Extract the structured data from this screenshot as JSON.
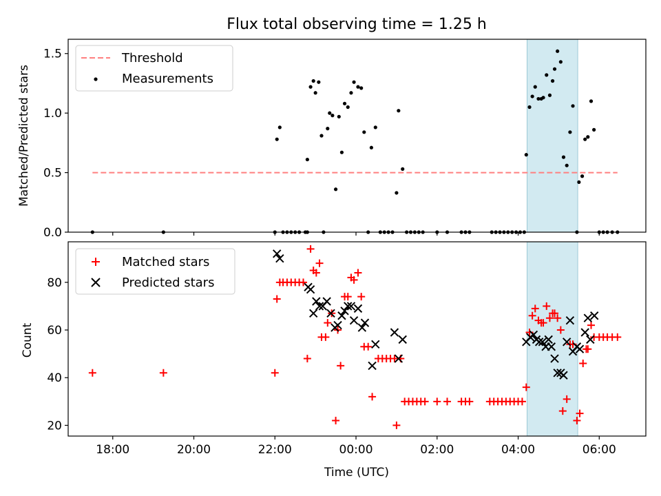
{
  "title": "Flux total observing time = 1.25 h",
  "colors": {
    "threshold": "#ff7f7f",
    "measurements": "#000000",
    "matched": "#ff0000",
    "predicted": "#000000",
    "highlight": "#add8e6"
  },
  "chart_data": [
    {
      "type": "scatter",
      "ylabel": "Matched/Predicted stars",
      "xlim": [
        16.9,
        31.15
      ],
      "ylim": [
        0,
        1.62
      ],
      "yticks": [
        0.0,
        0.5,
        1.0,
        1.5
      ],
      "ytick_labels": [
        "0.0",
        "0.5",
        "1.0",
        "1.5"
      ],
      "highlight_span": [
        28.22,
        29.47
      ],
      "legend": {
        "position": "top-left",
        "entries": [
          "Threshold",
          "Measurements"
        ]
      },
      "threshold": {
        "name": "Threshold",
        "y": 0.5,
        "x_range": [
          17.5,
          30.45
        ],
        "style": "dashed"
      },
      "series": [
        {
          "name": "Measurements",
          "marker": "dot",
          "points": [
            [
              17.5,
              0
            ],
            [
              19.25,
              0
            ],
            [
              22.0,
              0
            ],
            [
              22.05,
              0.78
            ],
            [
              22.12,
              0.88
            ],
            [
              22.2,
              0
            ],
            [
              22.3,
              0
            ],
            [
              22.4,
              0
            ],
            [
              22.5,
              0
            ],
            [
              22.6,
              0
            ],
            [
              22.75,
              0
            ],
            [
              22.8,
              0
            ],
            [
              22.8,
              0.61
            ],
            [
              22.88,
              1.22
            ],
            [
              22.95,
              1.27
            ],
            [
              23.0,
              1.17
            ],
            [
              23.08,
              1.26
            ],
            [
              23.15,
              0.81
            ],
            [
              23.2,
              0
            ],
            [
              23.3,
              0.87
            ],
            [
              23.35,
              1.0
            ],
            [
              23.42,
              0.98
            ],
            [
              23.5,
              0.36
            ],
            [
              23.58,
              0.97
            ],
            [
              23.65,
              0.67
            ],
            [
              23.72,
              1.08
            ],
            [
              23.8,
              1.05
            ],
            [
              23.88,
              1.17
            ],
            [
              23.95,
              1.26
            ],
            [
              24.05,
              1.22
            ],
            [
              24.13,
              1.21
            ],
            [
              24.2,
              0.84
            ],
            [
              24.3,
              0
            ],
            [
              24.38,
              0.71
            ],
            [
              24.48,
              0.88
            ],
            [
              24.6,
              0
            ],
            [
              24.7,
              0
            ],
            [
              24.8,
              0
            ],
            [
              24.9,
              0
            ],
            [
              25.0,
              0.33
            ],
            [
              25.05,
              1.02
            ],
            [
              25.15,
              0.53
            ],
            [
              25.25,
              0
            ],
            [
              25.35,
              0
            ],
            [
              25.45,
              0
            ],
            [
              25.55,
              0
            ],
            [
              25.65,
              0
            ],
            [
              26.0,
              0
            ],
            [
              26.25,
              0
            ],
            [
              26.6,
              0
            ],
            [
              26.7,
              0
            ],
            [
              26.8,
              0
            ],
            [
              27.35,
              0
            ],
            [
              27.45,
              0
            ],
            [
              27.55,
              0
            ],
            [
              27.65,
              0
            ],
            [
              27.75,
              0
            ],
            [
              27.85,
              0
            ],
            [
              27.95,
              0
            ],
            [
              28.05,
              0
            ],
            [
              28.15,
              0
            ],
            [
              28.2,
              0.65
            ],
            [
              28.28,
              1.05
            ],
            [
              28.35,
              1.14
            ],
            [
              28.42,
              1.22
            ],
            [
              28.5,
              1.12
            ],
            [
              28.57,
              1.12
            ],
            [
              28.62,
              1.13
            ],
            [
              28.7,
              1.32
            ],
            [
              28.78,
              1.15
            ],
            [
              28.85,
              1.27
            ],
            [
              28.9,
              1.37
            ],
            [
              28.97,
              1.52
            ],
            [
              29.05,
              1.43
            ],
            [
              29.12,
              0.63
            ],
            [
              29.2,
              0.56
            ],
            [
              29.28,
              0.84
            ],
            [
              29.35,
              1.06
            ],
            [
              29.45,
              0
            ],
            [
              29.5,
              0.42
            ],
            [
              29.58,
              0.47
            ],
            [
              29.65,
              0.78
            ],
            [
              29.72,
              0.8
            ],
            [
              29.8,
              1.1
            ],
            [
              29.87,
              0.86
            ],
            [
              30.0,
              0
            ],
            [
              30.1,
              0
            ],
            [
              30.2,
              0
            ],
            [
              30.32,
              0
            ],
            [
              30.45,
              0
            ]
          ]
        }
      ]
    },
    {
      "type": "scatter",
      "ylabel": "Count",
      "xlabel": "Time (UTC)",
      "xlim": [
        16.9,
        31.15
      ],
      "ylim": [
        15.5,
        97
      ],
      "yticks": [
        20,
        40,
        60,
        80
      ],
      "ytick_labels": [
        "20",
        "40",
        "60",
        "80"
      ],
      "xticks": [
        18,
        20,
        22,
        24,
        26,
        28,
        30
      ],
      "xtick_labels": [
        "18:00",
        "20:00",
        "22:00",
        "00:00",
        "02:00",
        "04:00",
        "06:00"
      ],
      "highlight_span": [
        28.22,
        29.47
      ],
      "legend": {
        "position": "top-left",
        "entries": [
          "Matched stars",
          "Predicted stars"
        ]
      },
      "series": [
        {
          "name": "Matched stars",
          "marker": "plus",
          "points": [
            [
              17.5,
              42
            ],
            [
              19.25,
              42
            ],
            [
              22.0,
              42
            ],
            [
              22.05,
              73
            ],
            [
              22.12,
              80
            ],
            [
              22.2,
              80
            ],
            [
              22.3,
              80
            ],
            [
              22.4,
              80
            ],
            [
              22.5,
              80
            ],
            [
              22.6,
              80
            ],
            [
              22.7,
              80
            ],
            [
              22.8,
              48
            ],
            [
              22.88,
              94
            ],
            [
              22.95,
              85
            ],
            [
              23.02,
              84
            ],
            [
              23.1,
              88
            ],
            [
              23.15,
              57
            ],
            [
              23.25,
              57
            ],
            [
              23.3,
              63
            ],
            [
              23.4,
              67
            ],
            [
              23.5,
              22
            ],
            [
              23.55,
              60
            ],
            [
              23.62,
              45
            ],
            [
              23.72,
              74
            ],
            [
              23.8,
              74
            ],
            [
              23.88,
              82
            ],
            [
              23.95,
              81
            ],
            [
              24.05,
              84
            ],
            [
              24.13,
              74
            ],
            [
              24.2,
              53
            ],
            [
              24.3,
              53
            ],
            [
              24.4,
              32
            ],
            [
              24.55,
              48
            ],
            [
              24.65,
              48
            ],
            [
              24.75,
              48
            ],
            [
              24.85,
              48
            ],
            [
              24.95,
              48
            ],
            [
              25.0,
              20
            ],
            [
              25.1,
              48
            ],
            [
              25.2,
              30
            ],
            [
              25.3,
              30
            ],
            [
              25.4,
              30
            ],
            [
              25.5,
              30
            ],
            [
              25.6,
              30
            ],
            [
              25.7,
              30
            ],
            [
              26.0,
              30
            ],
            [
              26.25,
              30
            ],
            [
              26.6,
              30
            ],
            [
              26.7,
              30
            ],
            [
              26.8,
              30
            ],
            [
              27.3,
              30
            ],
            [
              27.4,
              30
            ],
            [
              27.5,
              30
            ],
            [
              27.6,
              30
            ],
            [
              27.7,
              30
            ],
            [
              27.8,
              30
            ],
            [
              27.9,
              30
            ],
            [
              28.0,
              30
            ],
            [
              28.1,
              30
            ],
            [
              28.2,
              36
            ],
            [
              28.28,
              59
            ],
            [
              28.35,
              66
            ],
            [
              28.42,
              69
            ],
            [
              28.5,
              64
            ],
            [
              28.57,
              63
            ],
            [
              28.62,
              63
            ],
            [
              28.7,
              70
            ],
            [
              28.78,
              65
            ],
            [
              28.85,
              67
            ],
            [
              28.9,
              67
            ],
            [
              28.97,
              65
            ],
            [
              29.05,
              60
            ],
            [
              29.1,
              26
            ],
            [
              29.2,
              31
            ],
            [
              29.28,
              54
            ],
            [
              29.35,
              54
            ],
            [
              29.45,
              22
            ],
            [
              29.52,
              25
            ],
            [
              29.6,
              46
            ],
            [
              29.68,
              52
            ],
            [
              29.72,
              52
            ],
            [
              29.8,
              62
            ],
            [
              29.87,
              57
            ],
            [
              30.0,
              57
            ],
            [
              30.1,
              57
            ],
            [
              30.2,
              57
            ],
            [
              30.32,
              57
            ],
            [
              30.45,
              57
            ]
          ]
        },
        {
          "name": "Predicted stars",
          "marker": "x",
          "points": [
            [
              22.05,
              92
            ],
            [
              22.12,
              90
            ],
            [
              22.82,
              78
            ],
            [
              22.88,
              77
            ],
            [
              22.95,
              67
            ],
            [
              23.02,
              72
            ],
            [
              23.1,
              70
            ],
            [
              23.18,
              70
            ],
            [
              23.28,
              72
            ],
            [
              23.38,
              67
            ],
            [
              23.48,
              61
            ],
            [
              23.55,
              62
            ],
            [
              23.65,
              66
            ],
            [
              23.72,
              68
            ],
            [
              23.8,
              70
            ],
            [
              23.88,
              70
            ],
            [
              23.95,
              64
            ],
            [
              24.05,
              69
            ],
            [
              24.15,
              61
            ],
            [
              24.22,
              63
            ],
            [
              24.4,
              45
            ],
            [
              24.48,
              54
            ],
            [
              24.95,
              59
            ],
            [
              25.05,
              48
            ],
            [
              25.15,
              56
            ],
            [
              28.2,
              55
            ],
            [
              28.3,
              57
            ],
            [
              28.38,
              58
            ],
            [
              28.45,
              56
            ],
            [
              28.52,
              55
            ],
            [
              28.6,
              55
            ],
            [
              28.68,
              53
            ],
            [
              28.75,
              56
            ],
            [
              28.82,
              53
            ],
            [
              28.9,
              48
            ],
            [
              28.97,
              42
            ],
            [
              29.05,
              42
            ],
            [
              29.12,
              41
            ],
            [
              29.2,
              55
            ],
            [
              29.28,
              64
            ],
            [
              29.35,
              51
            ],
            [
              29.45,
              53
            ],
            [
              29.52,
              52
            ],
            [
              29.65,
              59
            ],
            [
              29.72,
              65
            ],
            [
              29.78,
              56
            ],
            [
              29.88,
              66
            ]
          ]
        }
      ]
    }
  ]
}
